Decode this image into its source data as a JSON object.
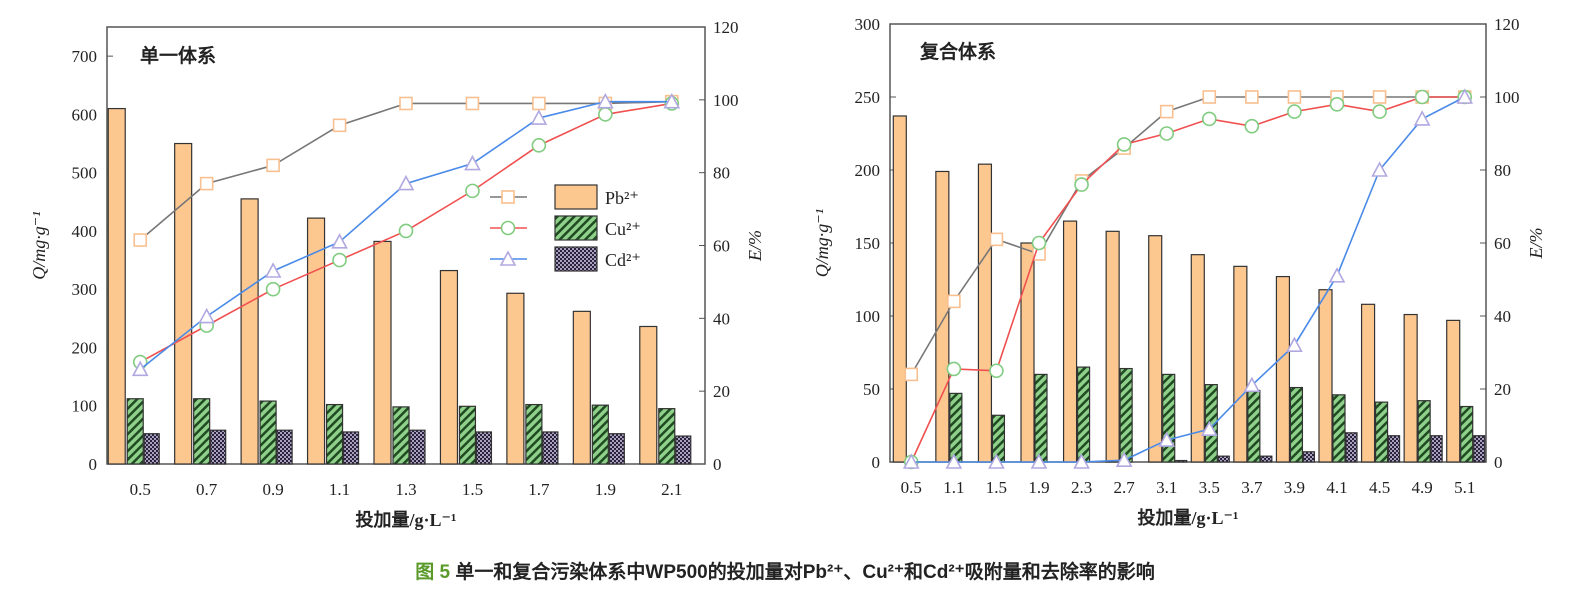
{
  "colors": {
    "pb_bar": "#fdc890",
    "cu_bar": "#7cc47a",
    "cd_bar": "#3a3050",
    "pb_line": "#777777",
    "cu_line": "#f05050",
    "cd_line": "#4a8ae8",
    "pb_marker": "#f8c090",
    "cu_marker": "#80cc80",
    "cd_marker": "#b0a8e0",
    "caption_fig": "#5a9a2a"
  },
  "legend": {
    "pb": "Pb²⁺",
    "cu": "Cu²⁺",
    "cd": "Cd²⁺"
  },
  "caption": {
    "fig": "图 5",
    "text": "单一和复合污染体系中WP500的投加量对Pb²⁺、Cu²⁺和Cd²⁺吸附量和去除率的影响"
  },
  "chart_data": [
    {
      "type": "bar+line",
      "panel_label": "单一体系",
      "xlabel": "投加量/g·L⁻¹",
      "ylabel": "Q/mg·g⁻¹",
      "y2label": "E/%",
      "ylim": [
        0,
        750
      ],
      "yticks": [
        0,
        100,
        200,
        300,
        400,
        500,
        600,
        700
      ],
      "y2lim": [
        0,
        120
      ],
      "y2ticks": [
        0,
        20,
        40,
        60,
        80,
        100,
        120
      ],
      "legend_position": "center-right",
      "categories": [
        "0.5",
        "0.7",
        "0.9",
        "1.1",
        "1.3",
        "1.5",
        "1.7",
        "1.9",
        "2.1"
      ],
      "bars": [
        {
          "name": "Pb²⁺",
          "values": [
            610,
            550,
            455,
            422,
            382,
            332,
            293,
            262,
            236
          ]
        },
        {
          "name": "Cu²⁺",
          "values": [
            112,
            112,
            108,
            102,
            98,
            99,
            102,
            101,
            95
          ]
        },
        {
          "name": "Cd²⁺",
          "values": [
            52,
            58,
            58,
            55,
            58,
            55,
            55,
            52,
            48
          ]
        }
      ],
      "lines": [
        {
          "name": "Pb²⁺",
          "values": [
            61.5,
            77,
            82,
            93,
            99,
            99,
            99,
            99,
            99.5
          ]
        },
        {
          "name": "Cu²⁺",
          "values": [
            28,
            38,
            48,
            56,
            64,
            75,
            87.5,
            96,
            99
          ]
        },
        {
          "name": "Cd²⁺",
          "values": [
            26,
            40.5,
            53,
            61,
            77,
            82.5,
            95,
            99.5,
            99.5
          ]
        }
      ]
    },
    {
      "type": "bar+line",
      "panel_label": "复合体系",
      "xlabel": "投加量/g·L⁻¹",
      "ylabel": "Q/mg·g⁻¹",
      "y2label": "E/%",
      "ylim": [
        0,
        300
      ],
      "yticks": [
        0,
        50,
        100,
        150,
        200,
        250,
        300
      ],
      "y2lim": [
        0,
        120
      ],
      "y2ticks": [
        0,
        20,
        40,
        60,
        80,
        100,
        120
      ],
      "categories": [
        "0.5",
        "1.1",
        "1.5",
        "1.9",
        "2.3",
        "2.7",
        "3.1",
        "3.5",
        "3.7",
        "3.9",
        "4.1",
        "4.5",
        "4.9",
        "5.1"
      ],
      "bars": [
        {
          "name": "Pb²⁺",
          "values": [
            237,
            199,
            204,
            150,
            165,
            158,
            155,
            142,
            134,
            127,
            118,
            108,
            101,
            97
          ]
        },
        {
          "name": "Cu²⁺",
          "values": [
            0,
            47,
            32,
            60,
            65,
            64,
            60,
            53,
            49,
            51,
            46,
            41,
            42,
            38
          ]
        },
        {
          "name": "Cd²⁺",
          "values": [
            0,
            0,
            0,
            0,
            0,
            0,
            1,
            4,
            4,
            7,
            20,
            18,
            18,
            18
          ]
        }
      ],
      "lines": [
        {
          "name": "Pb²⁺",
          "values": [
            24,
            44,
            61,
            57,
            77,
            86,
            96,
            100,
            100,
            100,
            100,
            100,
            100,
            100
          ]
        },
        {
          "name": "Cu²⁺",
          "values": [
            0,
            25.5,
            25,
            60,
            76,
            87,
            90,
            94,
            92,
            96,
            98,
            96,
            100,
            100
          ]
        },
        {
          "name": "Cd²⁺",
          "values": [
            0,
            0,
            0,
            0,
            0,
            0.5,
            6,
            9,
            21,
            32,
            51,
            80,
            94,
            100
          ]
        }
      ]
    }
  ]
}
